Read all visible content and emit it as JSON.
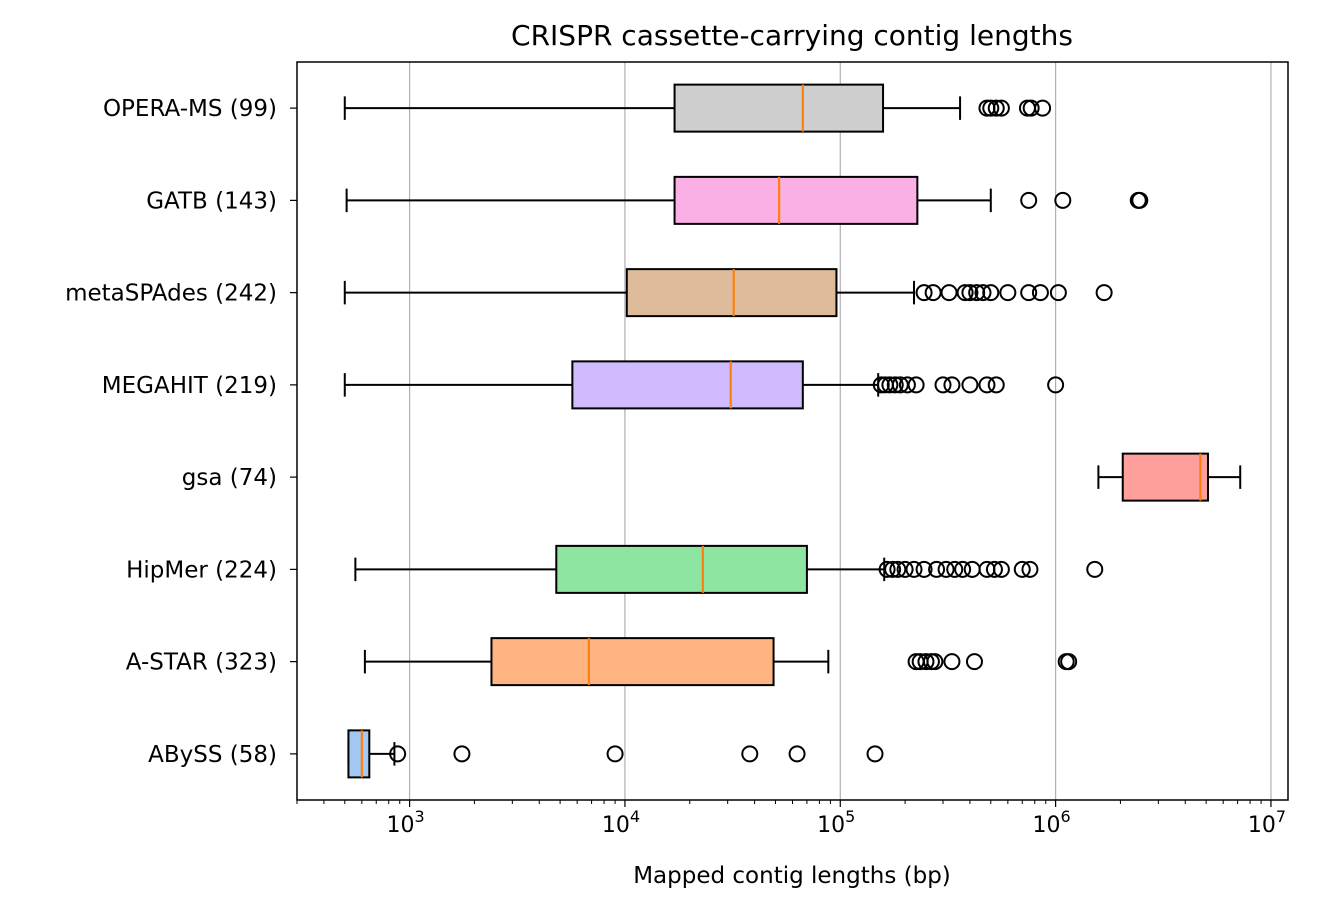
{
  "chart_data": {
    "type": "boxplot",
    "orientation": "horizontal",
    "title": "CRISPR cassette-carrying contig lengths",
    "xlabel": "Mapped contig lengths (bp)",
    "ylabel": "",
    "xscale": "log",
    "xlim": [
      300,
      12000000
    ],
    "grid": "x-major",
    "xticks": [
      {
        "base": "10",
        "exp": "3"
      },
      {
        "base": "10",
        "exp": "4"
      },
      {
        "base": "10",
        "exp": "5"
      },
      {
        "base": "10",
        "exp": "6"
      },
      {
        "base": "10",
        "exp": "7"
      }
    ],
    "median_color": "#ff7f0e",
    "series": [
      {
        "name": "ABySS (58)",
        "color": "#a1c9f4",
        "whislo": 520,
        "q1": 520,
        "med": 600,
        "q3": 650,
        "whishi": 850,
        "fliers": [
          880,
          1750,
          9000,
          38000,
          63000,
          145000
        ]
      },
      {
        "name": "A-STAR (323)",
        "color": "#ffb482",
        "whislo": 620,
        "q1": 2400,
        "med": 6800,
        "q3": 49000,
        "whishi": 88000,
        "fliers": [
          225000,
          235000,
          250000,
          265000,
          275000,
          330000,
          420000,
          1120000,
          1150000
        ]
      },
      {
        "name": "HipMer (224)",
        "color": "#8de5a1",
        "whislo": 560,
        "q1": 4800,
        "med": 23000,
        "q3": 70000,
        "whishi": 160000,
        "fliers": [
          165000,
          175000,
          185000,
          200000,
          220000,
          245000,
          280000,
          310000,
          340000,
          370000,
          410000,
          480000,
          520000,
          560000,
          700000,
          760000,
          1520000
        ]
      },
      {
        "name": "gsa (74)",
        "color": "#ff9f9b",
        "whislo": 1580000,
        "q1": 2050000,
        "med": 4700000,
        "q3": 5100000,
        "whishi": 7200000,
        "fliers": []
      },
      {
        "name": "MEGAHIT (219)",
        "color": "#d0bbff",
        "whislo": 500,
        "q1": 5700,
        "med": 31000,
        "q3": 67000,
        "whishi": 150000,
        "fliers": [
          155000,
          162000,
          170000,
          180000,
          190000,
          205000,
          225000,
          300000,
          330000,
          400000,
          480000,
          530000,
          1000000
        ]
      },
      {
        "name": "metaSPAdes (242)",
        "color": "#debb9b",
        "whislo": 500,
        "q1": 10200,
        "med": 32000,
        "q3": 96000,
        "whishi": 220000,
        "fliers": [
          245000,
          270000,
          320000,
          380000,
          400000,
          430000,
          460000,
          500000,
          600000,
          750000,
          850000,
          1030000,
          1680000
        ]
      },
      {
        "name": "GATB (143)",
        "color": "#fab0e4",
        "whislo": 510,
        "q1": 17000,
        "med": 52000,
        "q3": 228000,
        "whishi": 500000,
        "fliers": [
          750000,
          1080000,
          2420000,
          2460000
        ]
      },
      {
        "name": "OPERA-MS (99)",
        "color": "#cfcfcf",
        "whislo": 500,
        "q1": 17000,
        "med": 67000,
        "q3": 158000,
        "whishi": 360000,
        "fliers": [
          480000,
          500000,
          530000,
          560000,
          740000,
          770000,
          870000
        ]
      }
    ]
  }
}
